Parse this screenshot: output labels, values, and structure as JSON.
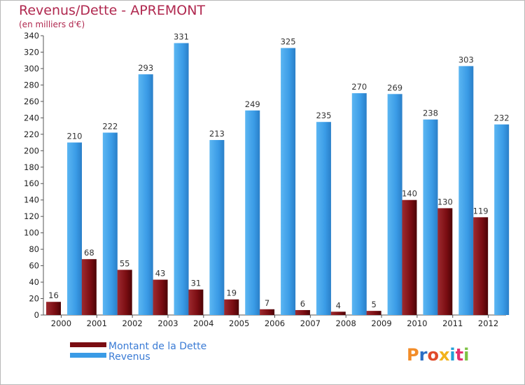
{
  "chart_data": {
    "type": "bar",
    "title": "Revenus/Dette - APREMONT",
    "subtitle": "(en milliers d'€)",
    "categories": [
      "2000",
      "2001",
      "2002",
      "2003",
      "2004",
      "2005",
      "2006",
      "2007",
      "2008",
      "2009",
      "2010",
      "2011",
      "2012"
    ],
    "series": [
      {
        "name": "Montant de la Dette",
        "color": "#7a0d12",
        "values": [
          16,
          68,
          55,
          43,
          31,
          19,
          7,
          6,
          4,
          5,
          140,
          130,
          119
        ]
      },
      {
        "name": "Revenus",
        "color": "#3a9be6",
        "values": [
          210,
          222,
          293,
          331,
          213,
          249,
          325,
          235,
          270,
          269,
          238,
          303,
          232
        ]
      }
    ],
    "ylim": [
      0,
      340
    ],
    "yticks": [
      0,
      20,
      40,
      60,
      80,
      100,
      120,
      140,
      160,
      180,
      200,
      220,
      240,
      260,
      280,
      300,
      320,
      340
    ],
    "grid": false,
    "legend_position": "bottom-left",
    "logo_text": "Proxiti",
    "logo_colors": [
      "#f28c28",
      "#2b6ec4",
      "#e04a2a",
      "#f2b21c",
      "#22a0d8",
      "#e5306c",
      "#7cc242"
    ]
  }
}
